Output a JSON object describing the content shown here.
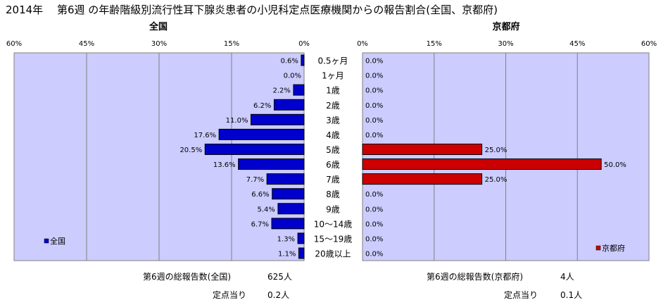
{
  "title": "2014年　 第6週 の年齢階級別流行性耳下腺炎患者の小児科定点医療機関からの報告割合(全国、京都府)",
  "footer": {
    "national_total_label": "第6週の総報告数(全国)",
    "national_total_value": "625人",
    "national_per_label": "定点当り",
    "national_per_value": "0.2人",
    "kyoto_total_label": "第6週の総報告数(京都府)",
    "kyoto_total_value": "4人",
    "kyoto_per_label": "定点当り",
    "kyoto_per_value": "0.1人"
  },
  "colors": {
    "plot_bg": "#ccccff",
    "national_bar": "#0000cc",
    "kyoto_bar": "#cc0000",
    "grid": "#808080"
  },
  "chart_data": {
    "type": "bar",
    "orientation": "horizontal",
    "categories": [
      "0.5ヶ月",
      "1ヶ月",
      "1歳",
      "2歳",
      "3歳",
      "4歳",
      "5歳",
      "6歳",
      "7歳",
      "8歳",
      "9歳",
      "10～14歳",
      "15～19歳",
      "20歳以上"
    ],
    "panels": [
      {
        "title": "全国",
        "legend": "全国",
        "legend_position": "bottom-left",
        "direction": "reversed",
        "xlim": [
          0,
          60
        ],
        "ticks": [
          "60%",
          "45%",
          "30%",
          "15%",
          "0%"
        ],
        "tick_values": [
          60,
          45,
          30,
          15,
          0
        ],
        "values": [
          0.6,
          0.0,
          2.2,
          6.2,
          11.0,
          17.6,
          20.5,
          13.6,
          7.7,
          6.6,
          5.4,
          6.7,
          1.3,
          1.1
        ],
        "labels": [
          "0.6%",
          "0.0%",
          "2.2%",
          "6.2%",
          "11.0%",
          "17.6%",
          "20.5%",
          "13.6%",
          "7.7%",
          "6.6%",
          "5.4%",
          "6.7%",
          "1.3%",
          "1.1%"
        ]
      },
      {
        "title": "京都府",
        "legend": "京都府",
        "legend_position": "bottom-right",
        "direction": "normal",
        "xlim": [
          0,
          60
        ],
        "ticks": [
          "0%",
          "15%",
          "30%",
          "45%",
          "60%"
        ],
        "tick_values": [
          0,
          15,
          30,
          45,
          60
        ],
        "values": [
          0.0,
          0.0,
          0.0,
          0.0,
          0.0,
          0.0,
          25.0,
          50.0,
          25.0,
          0.0,
          0.0,
          0.0,
          0.0,
          0.0
        ],
        "labels": [
          "0.0%",
          "0.0%",
          "0.0%",
          "0.0%",
          "0.0%",
          "0.0%",
          "25.0%",
          "50.0%",
          "25.0%",
          "0.0%",
          "0.0%",
          "0.0%",
          "0.0%",
          "0.0%"
        ]
      }
    ]
  }
}
